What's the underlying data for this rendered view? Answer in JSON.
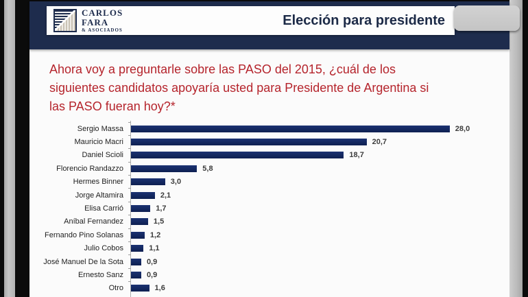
{
  "header": {
    "logo": {
      "line1": "CARLOS",
      "line2": "FARA",
      "line3": "& ASOCIADOS"
    },
    "title": "Elección para presidente"
  },
  "question": {
    "lines": [
      "Ahora voy a preguntarle sobre las PASO del 2015, ¿cuál de los",
      "siguientes candidatos apoyaría usted para Presidente de Argentina si",
      "las PASO fueran hoy?*"
    ]
  },
  "chart_data": {
    "type": "bar",
    "orientation": "horizontal",
    "title": "",
    "xlabel": "",
    "ylabel": "",
    "grid": false,
    "legend": false,
    "xlim": [
      0,
      30
    ],
    "categories": [
      "Sergio Massa",
      "Mauricio Macri",
      "Daniel Scioli",
      "Florencio Randazzo",
      "Hermes Binner",
      "Jorge Altamira",
      "Elisa Carrió",
      "Aníbal Fernandez",
      "Fernando Pino Solanas",
      "Julio Cobos",
      "José Manuel De la Sota",
      "Ernesto Sanz",
      "Otro"
    ],
    "values": [
      28.0,
      20.7,
      18.7,
      5.8,
      3.0,
      2.1,
      1.7,
      1.5,
      1.2,
      1.1,
      0.9,
      0.9,
      1.6
    ],
    "value_labels": [
      "28,0",
      "20,7",
      "18,7",
      "5,8",
      "3,0",
      "2,1",
      "1,7",
      "1,5",
      "1,2",
      "1,1",
      "0,9",
      "0,9",
      "1,6"
    ],
    "bar_color": "#13265c"
  },
  "colors": {
    "banner_navy": "#1e2c4d",
    "bar_navy": "#13265c",
    "question_red": "#b5242c",
    "title_navy": "#1c2a47",
    "frame_black": "#0b0b0b",
    "strip_gray": "#bdbdbd",
    "thumb_gray": "#c9c9c9"
  }
}
